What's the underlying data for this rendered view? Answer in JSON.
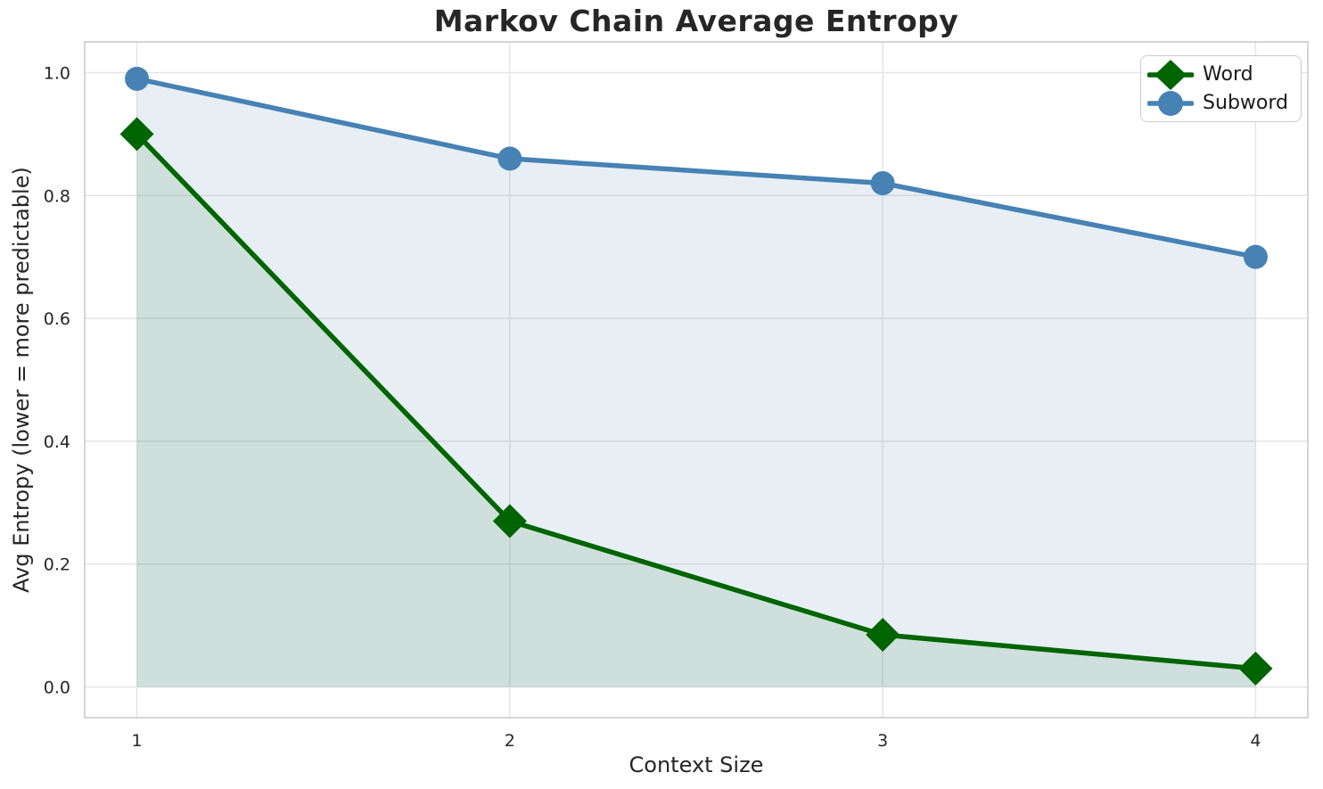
{
  "chart_data": {
    "type": "line",
    "title": "Markov Chain Average Entropy",
    "xlabel": "Context Size",
    "ylabel": "Avg Entropy (lower = more predictable)",
    "x": [
      1,
      2,
      3,
      4
    ],
    "xtick_labels": [
      "1",
      "2",
      "3",
      "4"
    ],
    "ytick_values": [
      0.0,
      0.2,
      0.4,
      0.6,
      0.8,
      1.0
    ],
    "ytick_labels": [
      "0.0",
      "0.2",
      "0.4",
      "0.6",
      "0.8",
      "1.0"
    ],
    "xlim": [
      0.86,
      4.14
    ],
    "ylim": [
      -0.05,
      1.05
    ],
    "grid": true,
    "legend_position": "upper right",
    "series": [
      {
        "name": "Word",
        "marker": "diamond",
        "color": "#006400",
        "fill_alpha": 0.1,
        "values": [
          0.9,
          0.27,
          0.085,
          0.03
        ]
      },
      {
        "name": "Subword",
        "marker": "circle",
        "color": "#4682b4",
        "fill_alpha": 0.13,
        "values": [
          0.99,
          0.86,
          0.82,
          0.7
        ]
      }
    ],
    "style": {
      "background": "#ffffff",
      "grid_color": "#e4e4e4",
      "spine_color": "#cbcbcb",
      "text_color": "#262626",
      "line_width": 5.5
    }
  }
}
